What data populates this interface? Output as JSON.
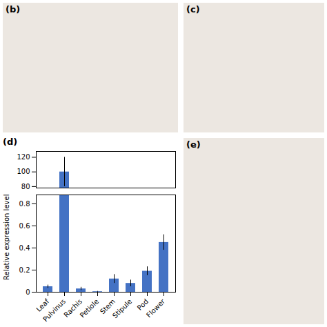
{
  "chart_data": {
    "type": "bar",
    "title": "(d)",
    "ylabel": "Relative expression level",
    "annotations": [
      "(b)",
      "(c)",
      "(e)"
    ],
    "categories": [
      "Leaf",
      "Pulvinus",
      "Rachis",
      "Petiole",
      "Stem",
      "Stipule",
      "Pod",
      "Flower"
    ],
    "values": [
      0.05,
      100.0,
      0.03,
      0.005,
      0.12,
      0.08,
      0.19,
      0.45
    ],
    "errors": [
      0.015,
      20.0,
      0.015,
      0.003,
      0.04,
      0.03,
      0.04,
      0.07
    ],
    "color": "#4472C4",
    "ylim": [
      [
        0,
        0.88
      ],
      [
        78,
        128
      ]
    ],
    "yticks": [
      0,
      0.2,
      0.4,
      0.6,
      0.8,
      80,
      100,
      120
    ]
  }
}
